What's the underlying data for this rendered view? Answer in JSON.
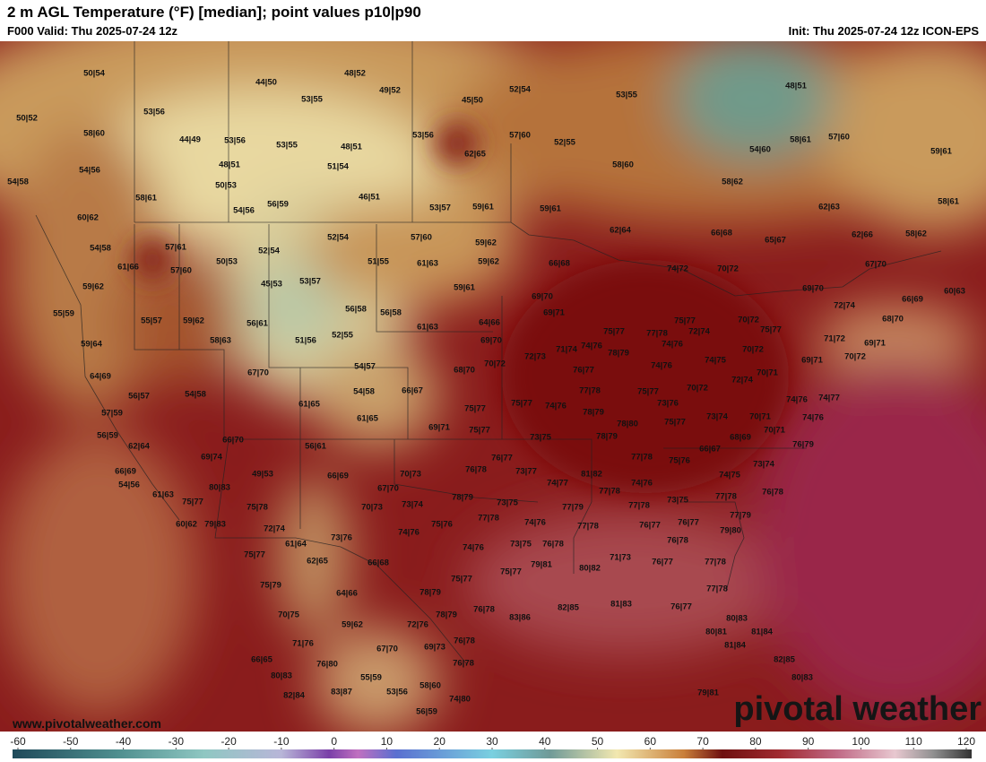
{
  "header": {
    "title": "2 m AGL Temperature (°F) [median]; point values p10|p90",
    "valid": "F000 Valid: Thu 2025-07-24 12z",
    "init": "Init: Thu 2025-07-24 12z ICON-EPS"
  },
  "footer": {
    "website": "www.pivotalweather.com",
    "logo": "pivotal weather"
  },
  "colorbar": {
    "lim": [
      -60,
      120
    ],
    "ticks": [
      -60,
      -50,
      -40,
      -30,
      -20,
      -10,
      0,
      10,
      20,
      30,
      40,
      50,
      60,
      70,
      80,
      90,
      100,
      110,
      120
    ]
  },
  "point_values": [
    "50|54",
    "44|50",
    "48|52",
    "49|52",
    "53|55",
    "45|50",
    "52|54",
    "53|55",
    "48|51",
    "53|56",
    "50|52",
    "58|60",
    "44|49",
    "53|56",
    "53|55",
    "48|51",
    "53|56",
    "57|60",
    "52|55",
    "62|65",
    "54|60",
    "58|61",
    "57|60",
    "59|61",
    "54|56",
    "48|51",
    "51|54",
    "58|60",
    "54|58",
    "50|53",
    "58|61",
    "46|51",
    "58|62",
    "62|63",
    "58|61",
    "54|56",
    "56|59",
    "53|57",
    "59|61",
    "59|61",
    "60|62",
    "62|64",
    "66|68",
    "65|67",
    "62|66",
    "58|62",
    "54|58",
    "57|61",
    "52|54",
    "57|60",
    "52|54",
    "59|62",
    "50|53",
    "61|66",
    "57|60",
    "51|55",
    "61|63",
    "59|62",
    "66|68",
    "74|72",
    "70|72",
    "67|70",
    "45|53",
    "53|57",
    "59|61",
    "59|62",
    "69|70",
    "69|70",
    "60|63",
    "66|69",
    "72|74",
    "55|59",
    "56|58",
    "56|58",
    "69|71",
    "55|57",
    "59|62",
    "56|61",
    "64|66",
    "75|77",
    "70|72",
    "68|70",
    "61|63",
    "75|77",
    "77|78",
    "72|74",
    "75|77",
    "52|55",
    "51|56",
    "58|63",
    "59|64",
    "69|70",
    "71|72",
    "69|71",
    "71|74",
    "74|76",
    "78|79",
    "74|76",
    "74|75",
    "70|72",
    "72|73",
    "70|72",
    "70|72",
    "67|70",
    "54|57",
    "68|70",
    "76|77",
    "74|76",
    "70|71",
    "69|71",
    "64|69",
    "54|58",
    "56|57",
    "54|58",
    "66|67",
    "77|78",
    "75|77",
    "70|72",
    "72|74",
    "74|76",
    "74|77",
    "61|65",
    "75|77",
    "75|77",
    "74|76",
    "78|79",
    "73|76",
    "57|59",
    "61|65",
    "69|71",
    "75|77",
    "78|80",
    "75|77",
    "73|74",
    "70|71",
    "74|76",
    "56|59",
    "66|70",
    "56|61",
    "73|75",
    "78|79",
    "68|69",
    "70|71",
    "62|64",
    "69|74",
    "66|67",
    "76|79",
    "76|77",
    "77|78",
    "75|76",
    "73|74",
    "66|69",
    "49|53",
    "66|69",
    "70|73",
    "76|78",
    "73|77",
    "81|82",
    "74|75",
    "54|56",
    "80|83",
    "67|70",
    "74|77",
    "74|76",
    "77|78",
    "73|75",
    "77|78",
    "76|78",
    "61|63",
    "78|79",
    "73|75",
    "75|77",
    "70|73",
    "73|74",
    "75|78",
    "77|79",
    "77|78",
    "77|79",
    "60|62",
    "79|83",
    "77|78",
    "74|76",
    "77|78",
    "76|77",
    "76|77",
    "72|74",
    "75|76",
    "74|76",
    "79|80",
    "73|76",
    "61|64",
    "74|76",
    "73|75",
    "76|78",
    "76|78",
    "75|77",
    "62|65",
    "66|68",
    "71|73",
    "76|77",
    "77|78",
    "75|77",
    "79|81",
    "80|82",
    "75|77",
    "75|79",
    "64|66",
    "78|79",
    "77|78",
    "76|78",
    "83|86",
    "82|85",
    "81|83",
    "78|79",
    "70|75",
    "76|77",
    "80|83",
    "59|62",
    "72|76",
    "80|81",
    "81|84",
    "76|78",
    "71|76",
    "69|73",
    "67|70",
    "81|84",
    "66|65",
    "76|80",
    "76|78",
    "80|83",
    "82|85",
    "80|83",
    "55|59",
    "58|60",
    "82|84",
    "83|87",
    "53|56",
    "74|80",
    "79|81",
    "56|59"
  ]
}
